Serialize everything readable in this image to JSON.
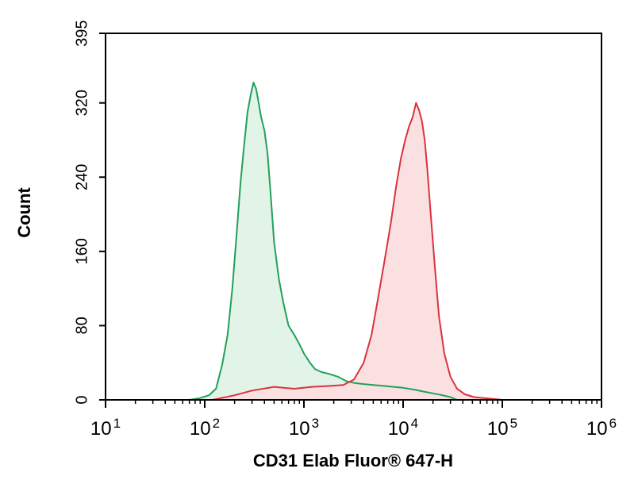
{
  "chart_data": {
    "type": "area",
    "xlabel": "CD31 Elab Fluor® 647-H",
    "ylabel": "Count",
    "x_scale": "log",
    "xlim": [
      10,
      1000000
    ],
    "ylim": [
      0,
      395
    ],
    "x_ticks": [
      {
        "value": 10,
        "base": "10",
        "exp": "1"
      },
      {
        "value": 100,
        "base": "10",
        "exp": "2"
      },
      {
        "value": 1000,
        "base": "10",
        "exp": "3"
      },
      {
        "value": 10000,
        "base": "10",
        "exp": "4"
      },
      {
        "value": 100000,
        "base": "10",
        "exp": "5"
      },
      {
        "value": 1000000,
        "base": "10",
        "exp": "6"
      }
    ],
    "y_ticks": [
      "0",
      "80",
      "160",
      "240",
      "320",
      "395"
    ],
    "grid": false,
    "legend": "none",
    "series": [
      {
        "color": "#22a05a",
        "fill": "#e2f3e8",
        "x": [
          70,
          90,
          110,
          130,
          150,
          170,
          190,
          210,
          230,
          250,
          270,
          290,
          310,
          330,
          350,
          370,
          400,
          430,
          460,
          500,
          560,
          620,
          700,
          800,
          900,
          1000,
          1150,
          1300,
          1500,
          1800,
          2200,
          2700,
          3300,
          4000,
          5000,
          6500,
          8000,
          10000,
          13000,
          16000,
          20000,
          25000,
          30000,
          35000
        ],
        "y": [
          0,
          2,
          5,
          12,
          38,
          70,
          120,
          180,
          235,
          275,
          310,
          328,
          342,
          335,
          320,
          305,
          290,
          265,
          225,
          170,
          130,
          105,
          80,
          70,
          60,
          50,
          40,
          33,
          30,
          28,
          25,
          20,
          18,
          17,
          16,
          15,
          14,
          13,
          11,
          9,
          7,
          5,
          3,
          0
        ]
      },
      {
        "color": "#d9333f",
        "fill": "#fbe0e2",
        "x": [
          120,
          200,
          300,
          500,
          800,
          1200,
          1800,
          2500,
          3200,
          4000,
          4800,
          5600,
          6500,
          7500,
          8500,
          9500,
          10500,
          11500,
          12500,
          13500,
          14500,
          15500,
          16500,
          17500,
          19000,
          21000,
          23000,
          26000,
          30000,
          35000,
          42000,
          52000,
          65000,
          80000,
          100000
        ],
        "y": [
          0,
          5,
          10,
          14,
          12,
          14,
          15,
          16,
          22,
          40,
          70,
          110,
          150,
          190,
          230,
          260,
          280,
          295,
          305,
          320,
          312,
          300,
          280,
          250,
          200,
          140,
          90,
          50,
          25,
          12,
          6,
          3,
          2,
          1,
          0
        ]
      }
    ]
  }
}
